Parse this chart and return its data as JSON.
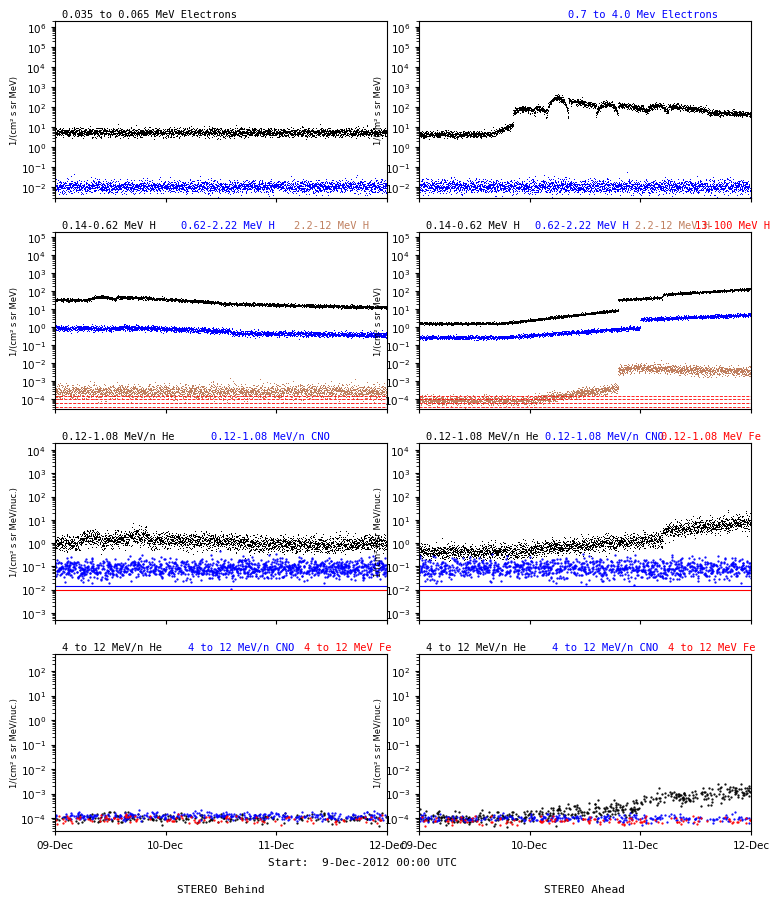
{
  "bg_color": "#ffffff",
  "ylabel_mev": "1/(cm² s sr MeV)",
  "ylabel_nuc": "1/(cm² s sr MeV/nuc.)",
  "xlabel_left": "STEREO Behind",
  "xlabel_right": "STEREO Ahead",
  "xlabel_center": "Start:  9-Dec-2012 00:00 UTC",
  "xtick_labels": [
    "09-Dec",
    "10-Dec",
    "11-Dec",
    "12-Dec"
  ],
  "panels": {
    "r1l": {
      "ylim": [
        0.003,
        2000000.0
      ],
      "title_pieces": [
        [
          "0.035 to 0.065 MeV Electrons",
          0.02,
          "black"
        ]
      ]
    },
    "r1r": {
      "ylim": [
        0.003,
        2000000.0
      ],
      "title_pieces": [
        [
          "0.7 to 4.0 Mev Electrons",
          0.45,
          "blue"
        ]
      ]
    },
    "r2l": {
      "ylim": [
        3e-05,
        200000.0
      ],
      "title_pieces": [
        [
          "0.14-0.62 MeV H",
          0.02,
          "black"
        ],
        [
          "0.62-2.22 MeV H",
          0.38,
          "blue"
        ],
        [
          "2.2-12 MeV H",
          0.72,
          "#c08060"
        ]
      ]
    },
    "r2r": {
      "ylim": [
        3e-05,
        200000.0
      ],
      "title_pieces": [
        [
          "0.14-0.62 MeV H",
          0.02,
          "black"
        ],
        [
          "0.62-2.22 MeV H",
          0.35,
          "blue"
        ],
        [
          "2.2-12 MeV H",
          0.65,
          "#c08060"
        ],
        [
          "13-100 MeV H",
          0.83,
          "red"
        ]
      ]
    },
    "r3l": {
      "ylim": [
        0.0005,
        20000.0
      ],
      "title_pieces": [
        [
          "0.12-1.08 MeV/n He",
          0.02,
          "black"
        ],
        [
          "0.12-1.08 MeV/n CNO",
          0.47,
          "blue"
        ]
      ]
    },
    "r3r": {
      "ylim": [
        0.0005,
        20000.0
      ],
      "title_pieces": [
        [
          "0.12-1.08 MeV/n He",
          0.02,
          "black"
        ],
        [
          "0.12-1.08 MeV/n CNO",
          0.38,
          "blue"
        ],
        [
          "0.12-1.08 MeV Fe",
          0.73,
          "red"
        ]
      ]
    },
    "r4l": {
      "ylim": [
        3e-05,
        500.0
      ],
      "title_pieces": [
        [
          "4 to 12 MeV/n He",
          0.02,
          "black"
        ],
        [
          "4 to 12 MeV/n CNO",
          0.4,
          "blue"
        ],
        [
          "4 to 12 MeV Fe",
          0.75,
          "red"
        ]
      ]
    },
    "r4r": {
      "ylim": [
        3e-05,
        500.0
      ],
      "title_pieces": [
        [
          "4 to 12 MeV/n He",
          0.02,
          "black"
        ],
        [
          "4 to 12 MeV/n CNO",
          0.4,
          "blue"
        ],
        [
          "4 to 12 MeV Fe",
          0.75,
          "red"
        ]
      ]
    }
  }
}
